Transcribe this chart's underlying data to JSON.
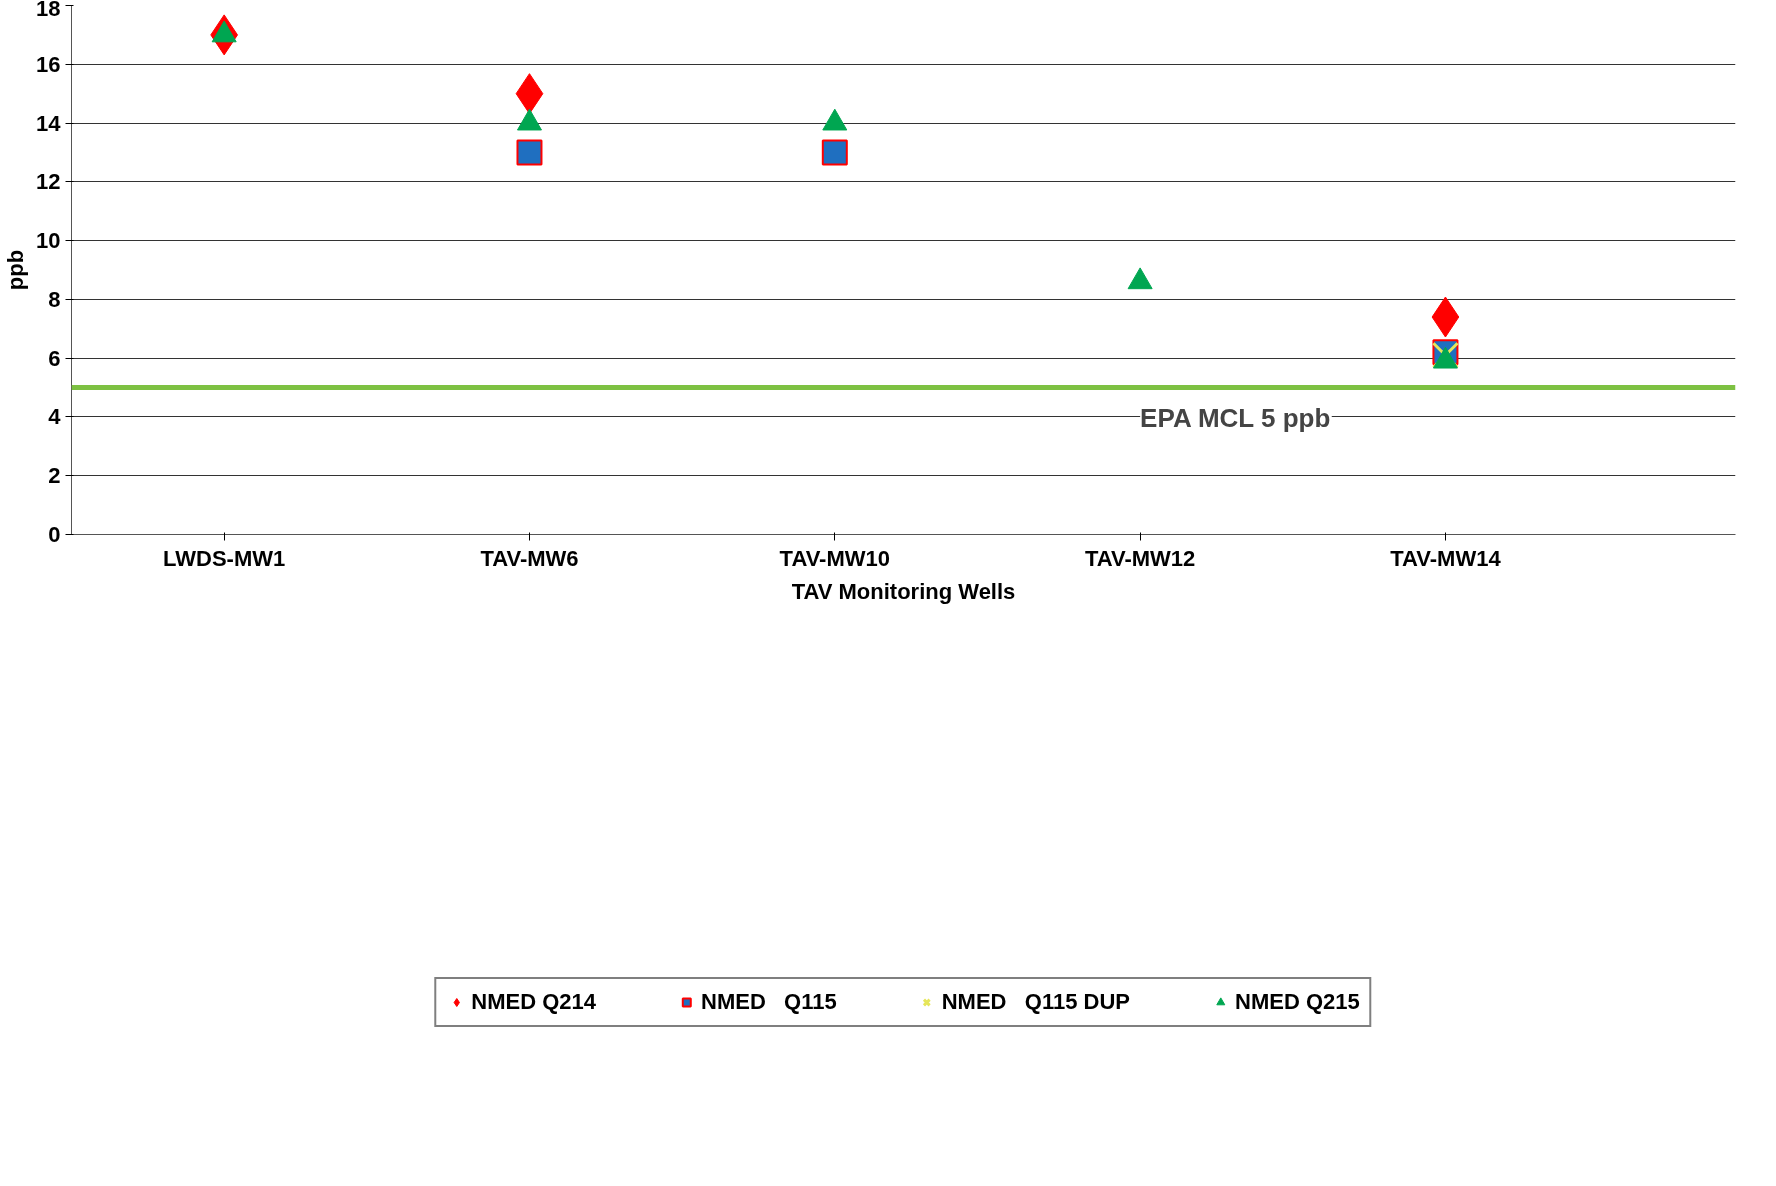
{
  "chart_data": {
    "type": "scatter",
    "xlabel": "TAV Monitoring Wells",
    "ylabel": "ppb",
    "categories": [
      "LWDS-MW1",
      "TAV-MW6",
      "TAV-MW10",
      "TAV-MW12",
      "TAV-MW14"
    ],
    "series": [
      {
        "name": "NMED Q214",
        "color": "#ff0000",
        "marker": "diamond",
        "values": [
          17,
          15,
          null,
          null,
          7.4
        ]
      },
      {
        "name": "NMED   Q115",
        "color": "#1f6fc0",
        "marker": "square",
        "values": [
          null,
          13,
          13,
          null,
          6.2
        ]
      },
      {
        "name": "NMED   Q115 DUP",
        "color": "#e6e65a",
        "marker": "cross",
        "values": [
          null,
          null,
          null,
          null,
          6.1
        ]
      },
      {
        "name": "NMED Q215",
        "color": "#00a651",
        "marker": "triangle",
        "values": [
          17,
          14,
          14,
          8.6,
          5.9
        ]
      }
    ],
    "ylim": [
      0,
      18
    ],
    "yticks": [
      0,
      2,
      4,
      6,
      8,
      10,
      12,
      14,
      16,
      18
    ],
    "ref_lines": [
      {
        "axis": "y",
        "value": 5,
        "label": "EPA MCL 5 ppb",
        "color": "#7dc142"
      }
    ],
    "grid": "y",
    "legend": "bottom"
  }
}
